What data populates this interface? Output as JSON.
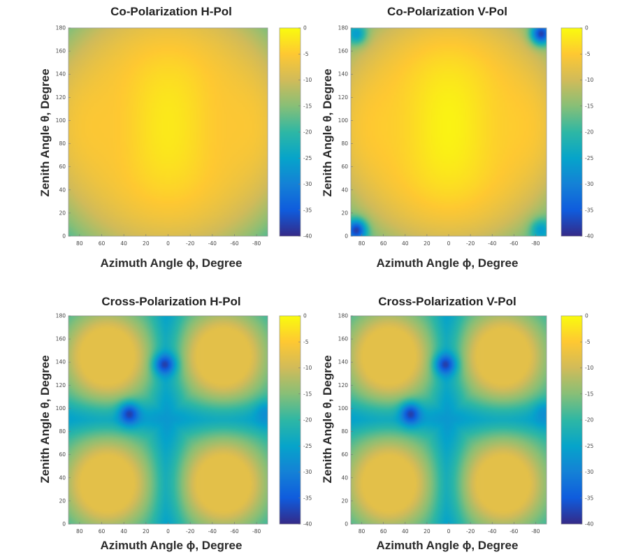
{
  "chart_data": [
    {
      "type": "heatmap",
      "title": "Co-Polarization H-Pol",
      "xlabel": "Azimuth Angle ϕ, Degree",
      "ylabel": "Zenith Angle θ, Degree",
      "xlim": [
        90,
        -90
      ],
      "ylim": [
        0,
        180
      ],
      "x_ticks": [
        "80",
        "60",
        "40",
        "20",
        "0",
        "-20",
        "-40",
        "-60",
        "-80"
      ],
      "y_ticks": [
        "0",
        "20",
        "40",
        "60",
        "80",
        "100",
        "120",
        "140",
        "160",
        "180"
      ],
      "colorbar": {
        "range": [
          -40,
          0
        ],
        "ticks": [
          "0",
          "-5",
          "-10",
          "-15",
          "-20",
          "-25",
          "-30",
          "-35",
          "-40"
        ],
        "colormap": "parula"
      },
      "field": {
        "model": "co-pol",
        "peak_db": -3,
        "peak_at": {
          "phi": 0,
          "theta": 95
        },
        "edge_db": -13,
        "nulls": []
      }
    },
    {
      "type": "heatmap",
      "title": "Co-Polarization V-Pol",
      "xlabel": "Azimuth Angle ϕ, Degree",
      "ylabel": "Zenith Angle θ, Degree",
      "xlim": [
        90,
        -90
      ],
      "ylim": [
        0,
        180
      ],
      "x_ticks": [
        "80",
        "60",
        "40",
        "20",
        "0",
        "-20",
        "-40",
        "-60",
        "-80"
      ],
      "y_ticks": [
        "0",
        "20",
        "40",
        "60",
        "80",
        "100",
        "120",
        "140",
        "160",
        "180"
      ],
      "colorbar": {
        "range": [
          -40,
          0
        ],
        "ticks": [
          "0",
          "-5",
          "-10",
          "-15",
          "-20",
          "-25",
          "-30",
          "-35",
          "-40"
        ],
        "colormap": "parula"
      },
      "field": {
        "model": "co-pol",
        "peak_db": -2,
        "peak_at": {
          "phi": 0,
          "theta": 95
        },
        "edge_db": -14,
        "nulls": [
          {
            "phi": -85,
            "theta": 175,
            "depth_db": -38
          },
          {
            "phi": 85,
            "theta": 5,
            "depth_db": -38
          },
          {
            "phi": 85,
            "theta": 175,
            "depth_db": -26
          },
          {
            "phi": -85,
            "theta": 5,
            "depth_db": -26
          }
        ]
      }
    },
    {
      "type": "heatmap",
      "title": "Cross-Polarization H-Pol",
      "xlabel": "Azimuth Angle ϕ, Degree",
      "ylabel": "Zenith Angle θ, Degree",
      "xlim": [
        90,
        -90
      ],
      "ylim": [
        0,
        180
      ],
      "x_ticks": [
        "80",
        "60",
        "40",
        "20",
        "0",
        "-20",
        "-40",
        "-60",
        "-80"
      ],
      "y_ticks": [
        "0",
        "20",
        "40",
        "60",
        "80",
        "100",
        "120",
        "140",
        "160",
        "180"
      ],
      "colorbar": {
        "range": [
          -40,
          0
        ],
        "ticks": [
          "0",
          "-5",
          "-10",
          "-15",
          "-20",
          "-25",
          "-30",
          "-35",
          "-40"
        ],
        "colormap": "parula"
      },
      "field": {
        "model": "cross-pol",
        "lobe_db": -8,
        "lobes": [
          {
            "phi": 55,
            "theta": 145
          },
          {
            "phi": -50,
            "theta": 145
          },
          {
            "phi": 55,
            "theta": 35
          },
          {
            "phi": -50,
            "theta": 35
          }
        ],
        "trough_db": -24,
        "nulls": [
          {
            "phi": 35,
            "theta": 95,
            "depth_db": -38
          },
          {
            "phi": 3,
            "theta": 138,
            "depth_db": -38
          },
          {
            "phi": -88,
            "theta": 95,
            "depth_db": -28
          }
        ]
      }
    },
    {
      "type": "heatmap",
      "title": "Cross-Polarization V-Pol",
      "xlabel": "Azimuth Angle ϕ, Degree",
      "ylabel": "Zenith Angle θ, Degree",
      "xlim": [
        90,
        -90
      ],
      "ylim": [
        0,
        180
      ],
      "x_ticks": [
        "80",
        "60",
        "40",
        "20",
        "0",
        "-20",
        "-40",
        "-60",
        "-80"
      ],
      "y_ticks": [
        "0",
        "20",
        "40",
        "60",
        "80",
        "100",
        "120",
        "140",
        "160",
        "180"
      ],
      "colorbar": {
        "range": [
          -40,
          0
        ],
        "ticks": [
          "0",
          "-5",
          "-10",
          "-15",
          "-20",
          "-25",
          "-30",
          "-35",
          "-40"
        ],
        "colormap": "parula"
      },
      "field": {
        "model": "cross-pol",
        "lobe_db": -8,
        "lobes": [
          {
            "phi": 55,
            "theta": 145
          },
          {
            "phi": -50,
            "theta": 145
          },
          {
            "phi": 55,
            "theta": 35
          },
          {
            "phi": -50,
            "theta": 35
          }
        ],
        "trough_db": -24,
        "nulls": [
          {
            "phi": 35,
            "theta": 95,
            "depth_db": -38
          },
          {
            "phi": 3,
            "theta": 138,
            "depth_db": -38
          },
          {
            "phi": -88,
            "theta": 95,
            "depth_db": -28
          }
        ]
      }
    }
  ]
}
